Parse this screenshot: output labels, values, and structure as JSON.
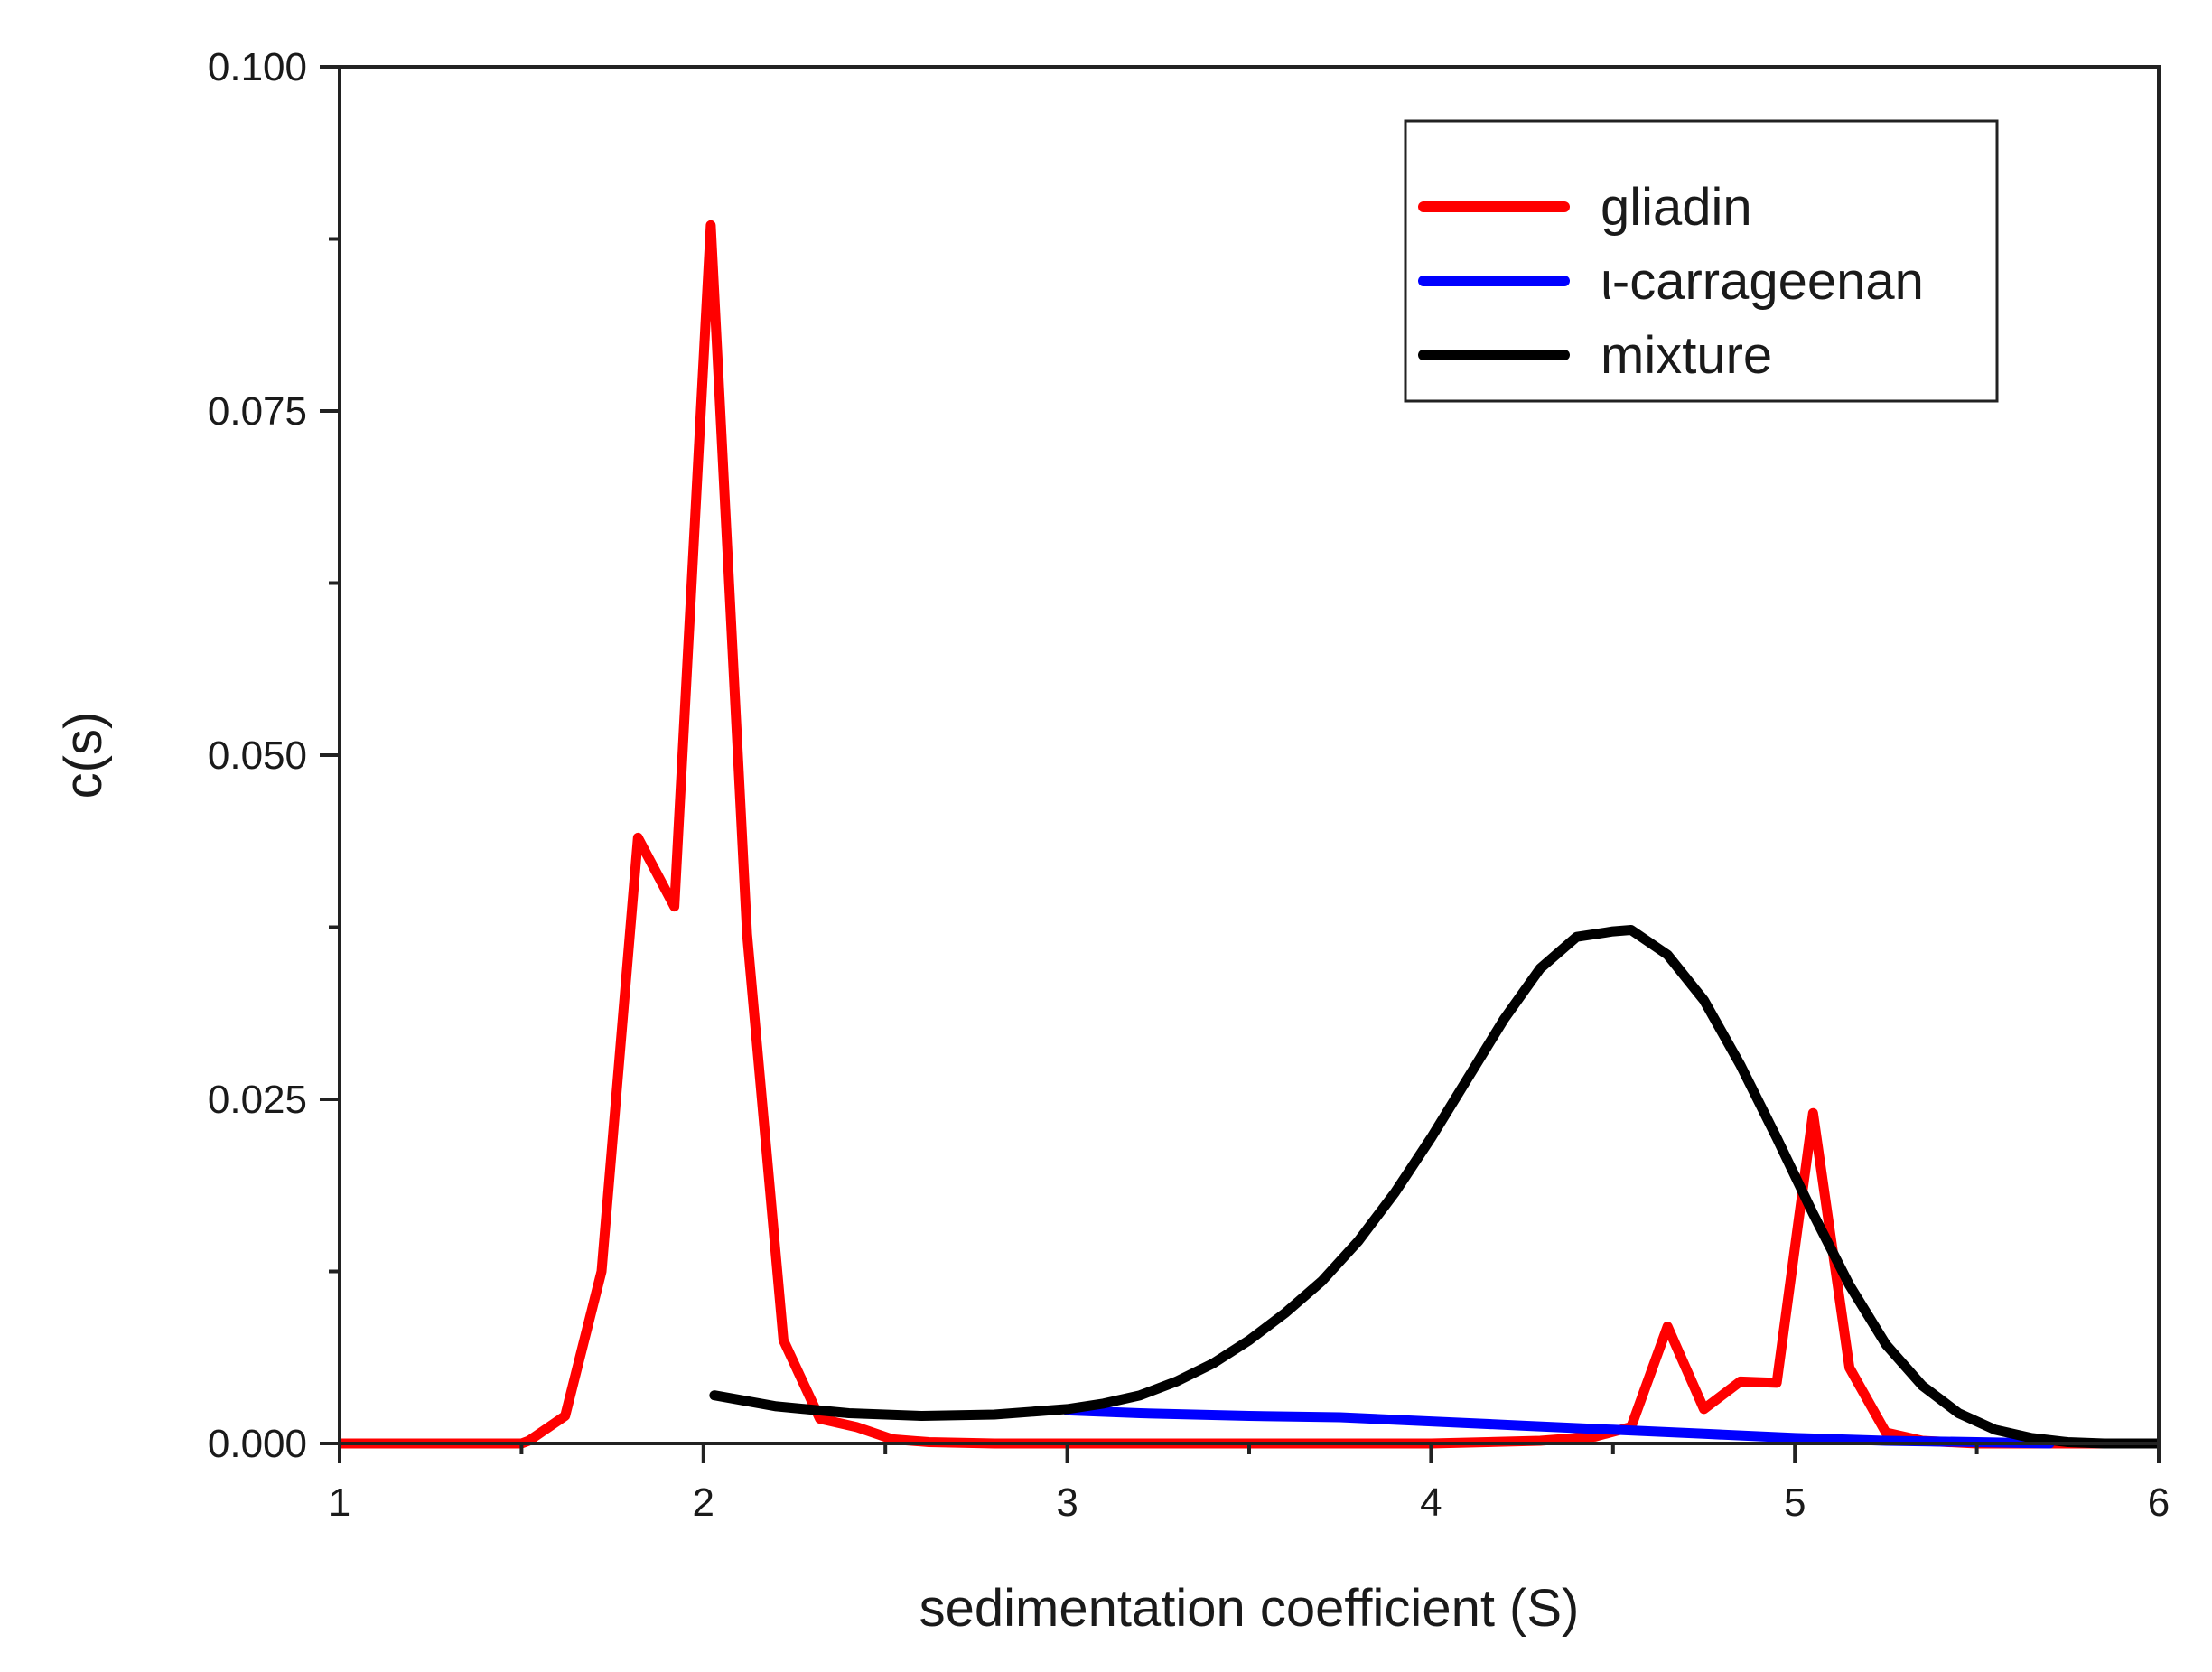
{
  "chart_data": {
    "type": "line",
    "title": "",
    "xlabel": "sedimentation coefficient (S)",
    "ylabel": "c(s)",
    "xlim": [
      1,
      6
    ],
    "ylim": [
      0,
      0.1
    ],
    "xticks": [
      1,
      2,
      3,
      4,
      5,
      6
    ],
    "xtick_labels": [
      "1",
      "2",
      "3",
      "4",
      "5",
      "6"
    ],
    "yticks": [
      0,
      0.025,
      0.05,
      0.075,
      0.1
    ],
    "ytick_labels": [
      "0.000",
      "0.025",
      "0.050",
      "0.075",
      "0.100"
    ],
    "grid": false,
    "legend_position": "top-right",
    "series": [
      {
        "name": "gliadin",
        "color": "#ff0000",
        "x": [
          1.0,
          1.5,
          1.52,
          1.62,
          1.72,
          1.82,
          1.92,
          2.02,
          2.12,
          2.22,
          2.32,
          2.42,
          2.52,
          2.62,
          2.8,
          3.0,
          3.5,
          4.0,
          4.3,
          4.45,
          4.55,
          4.65,
          4.75,
          4.85,
          4.95,
          5.05,
          5.15,
          5.25,
          5.35,
          5.5,
          6.0
        ],
        "y": [
          0.0,
          0.0,
          0.0002,
          0.002,
          0.0125,
          0.044,
          0.039,
          0.0885,
          0.037,
          0.0075,
          0.0018,
          0.0012,
          0.0003,
          0.0001,
          0.0,
          0.0,
          0.0,
          0.0,
          0.0002,
          0.0005,
          0.0012,
          0.0085,
          0.0025,
          0.0045,
          0.0044,
          0.024,
          0.0055,
          0.0008,
          0.0002,
          0.0,
          0.0
        ]
      },
      {
        "name": "ι-carrageenan",
        "color": "#0000ff",
        "x": [
          3.0,
          3.2,
          3.5,
          3.75,
          4.0,
          4.25,
          4.5,
          4.75,
          5.0,
          5.25,
          5.5,
          5.7
        ],
        "y": [
          0.0024,
          0.0022,
          0.002,
          0.0019,
          0.0016,
          0.0013,
          0.001,
          0.0007,
          0.0004,
          0.0002,
          0.0001,
          0.0
        ]
      },
      {
        "name": "mixture",
        "color": "#000000",
        "x": [
          2.03,
          2.2,
          2.4,
          2.6,
          2.8,
          3.0,
          3.1,
          3.2,
          3.3,
          3.4,
          3.5,
          3.6,
          3.7,
          3.8,
          3.9,
          4.0,
          4.1,
          4.2,
          4.3,
          4.4,
          4.5,
          4.55,
          4.65,
          4.75,
          4.85,
          4.95,
          5.05,
          5.15,
          5.25,
          5.35,
          5.45,
          5.55,
          5.65,
          5.75,
          5.85,
          6.0
        ],
        "y": [
          0.0035,
          0.0027,
          0.0022,
          0.002,
          0.0021,
          0.0025,
          0.0029,
          0.0035,
          0.0045,
          0.0058,
          0.0075,
          0.0095,
          0.0118,
          0.0147,
          0.0182,
          0.0222,
          0.0265,
          0.0308,
          0.0345,
          0.0368,
          0.0372,
          0.0373,
          0.0355,
          0.0322,
          0.0275,
          0.0222,
          0.0167,
          0.0115,
          0.0072,
          0.0042,
          0.0022,
          0.001,
          0.0004,
          0.0001,
          0.0,
          0.0
        ]
      }
    ]
  }
}
